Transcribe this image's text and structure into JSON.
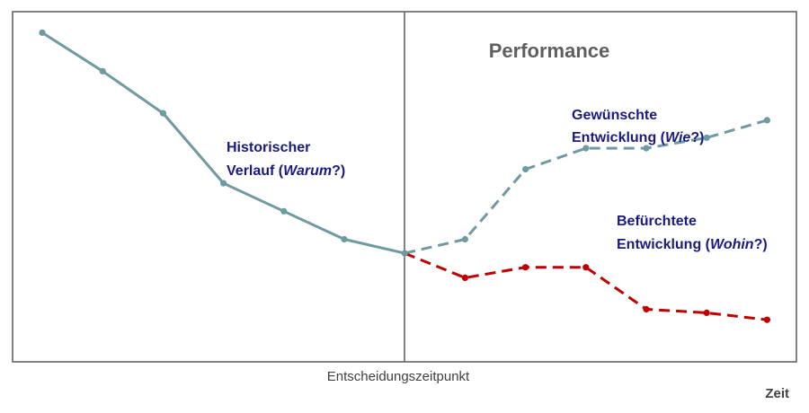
{
  "chart_data": {
    "type": "line",
    "title": "Performance",
    "xlabel": "Zeit",
    "decision_label": "Entscheidungszeitpunkt",
    "ylim": [
      0,
      10
    ],
    "series": [
      {
        "label_parts": [
          "Historischer",
          "Verlauf (",
          "Warum",
          "?)"
        ],
        "color": "#6f9aa2",
        "style": "solid",
        "x": [
          0,
          1,
          2,
          3,
          4,
          5,
          6
        ],
        "y": [
          9.4,
          8.3,
          7.1,
          5.1,
          4.3,
          3.5,
          3.1
        ]
      },
      {
        "label_parts": [
          "Gewünschte",
          "Entwicklung (",
          "Wie",
          "?)"
        ],
        "color": "#6f9aa2",
        "style": "dashed",
        "x": [
          6,
          7,
          8,
          9,
          10,
          11,
          12
        ],
        "y": [
          3.1,
          3.5,
          5.5,
          6.1,
          6.1,
          6.4,
          6.9
        ]
      },
      {
        "label_parts": [
          "Befürchtete",
          "Entwicklung (",
          "Wohin",
          "?)"
        ],
        "color": "#c00000",
        "style": "dashed",
        "x": [
          6,
          7,
          8,
          9,
          10,
          11,
          12
        ],
        "y": [
          3.1,
          2.4,
          2.7,
          2.7,
          1.5,
          1.4,
          1.2
        ]
      }
    ]
  }
}
